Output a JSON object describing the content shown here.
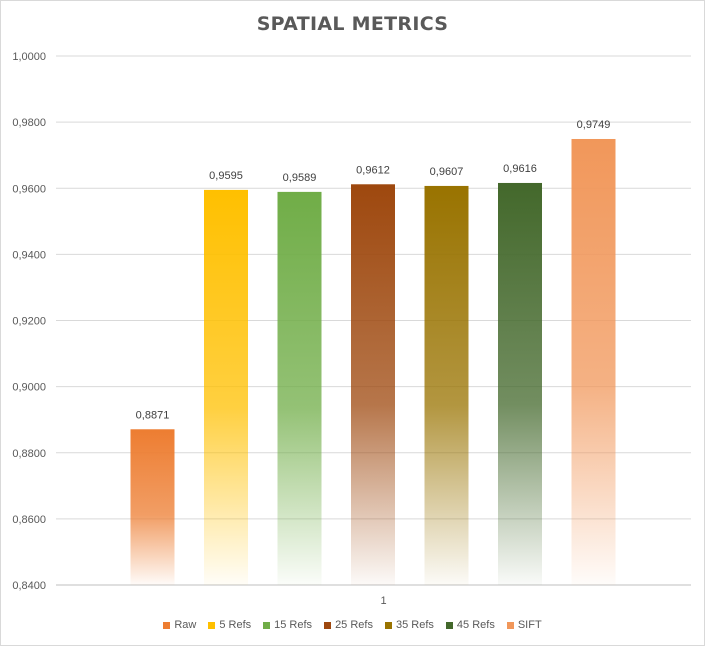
{
  "chart_data": {
    "type": "bar",
    "title": "SPATIAL METRICS",
    "categories": [
      "1"
    ],
    "series": [
      {
        "name": "Raw",
        "values": [
          0.8871
        ],
        "label": "0,8871",
        "color": "#ed7d31"
      },
      {
        "name": "5 Refs",
        "values": [
          0.9595
        ],
        "label": "0,9595",
        "color": "#ffc000"
      },
      {
        "name": "15 Refs",
        "values": [
          0.9589
        ],
        "label": "0,9589",
        "color": "#70ad47"
      },
      {
        "name": "25 Refs",
        "values": [
          0.9612
        ],
        "label": "0,9612",
        "color": "#9e480e"
      },
      {
        "name": "35 Refs",
        "values": [
          0.9607
        ],
        "label": "0,9607",
        "color": "#997300"
      },
      {
        "name": "45 Refs",
        "values": [
          0.9616
        ],
        "label": "0,9616",
        "color": "#43682b"
      },
      {
        "name": "SIFT",
        "values": [
          0.9749
        ],
        "label": "0,9749",
        "color": "#f1975a"
      }
    ],
    "ylim": [
      0.84,
      1.0
    ],
    "y_ticks": [
      0.84,
      0.86,
      0.88,
      0.9,
      0.92,
      0.94,
      0.96,
      0.98,
      1.0
    ],
    "y_tick_labels": [
      "0,8400",
      "0,8600",
      "0,8800",
      "0,9000",
      "0,9200",
      "0,9400",
      "0,9600",
      "0,9800",
      "1,0000"
    ],
    "xlabel": "",
    "ylabel": "",
    "grid": true,
    "legend_position": "bottom"
  }
}
